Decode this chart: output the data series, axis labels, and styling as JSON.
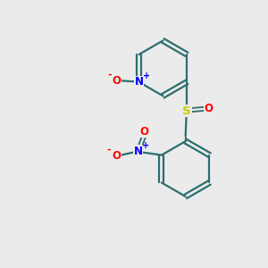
{
  "background_color": "#ebebeb",
  "bond_color": "#2d6e6e",
  "N_color": "#0000ff",
  "O_color": "#ff0000",
  "S_color": "#cccc00",
  "figsize": [
    3.0,
    3.0
  ],
  "dpi": 100,
  "xlim": [
    0,
    10
  ],
  "ylim": [
    0,
    10
  ]
}
